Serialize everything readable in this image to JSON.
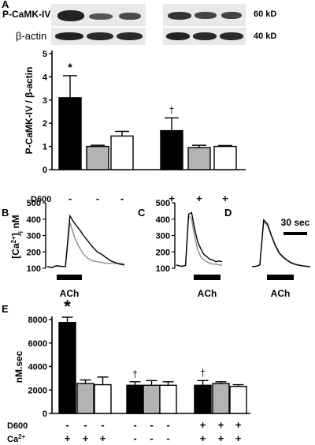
{
  "panels": {
    "a": "A",
    "b": "B",
    "c": "C",
    "d": "D",
    "e": "E"
  },
  "blot": {
    "row1_label": "P-CaMK-IV",
    "row1_kd": "60 kD",
    "row2_label": "β-actin",
    "row2_kd": "40 kD"
  },
  "colors": {
    "black": "#000000",
    "gray": "#b3b3b3",
    "white": "#ffffff",
    "trace_gray": "#8c8c8c"
  },
  "chart_data": [
    {
      "type": "bar",
      "panel": "A",
      "ylabel": "P-CaMK-IV / β-actin",
      "ylim": [
        0,
        5
      ],
      "yticks": [
        "0",
        "1",
        "2",
        "3",
        "4",
        "5"
      ],
      "group_rows": [
        {
          "label": "D600",
          "values": [
            "-",
            "-",
            "-",
            "+",
            "+",
            "+"
          ]
        }
      ],
      "bars": [
        {
          "value": 3.1,
          "err": 0.95,
          "color": "black",
          "mark": "*"
        },
        {
          "value": 1.0,
          "err": 0.05,
          "color": "gray",
          "mark": ""
        },
        {
          "value": 1.45,
          "err": 0.2,
          "color": "white",
          "mark": ""
        },
        {
          "value": 1.68,
          "err": 0.55,
          "color": "black",
          "mark": "†"
        },
        {
          "value": 0.95,
          "err": 0.1,
          "color": "gray",
          "mark": ""
        },
        {
          "value": 1.0,
          "err": 0.04,
          "color": "white",
          "mark": ""
        }
      ]
    },
    {
      "type": "line",
      "panel": "B",
      "ylabel": "[Ca2+]i nM",
      "ylim": [
        100,
        500
      ],
      "yticks": [
        "100",
        "200",
        "300",
        "400",
        "500"
      ],
      "stimulus": "ACh",
      "x": [
        0,
        4,
        8,
        12,
        16,
        20,
        24,
        28,
        32,
        36,
        40,
        44,
        48,
        52,
        56,
        60,
        64,
        68
      ],
      "series": [
        {
          "color": "black",
          "values": [
            110,
            105,
            115,
            112,
            110,
            420,
            375,
            340,
            300,
            265,
            230,
            200,
            185,
            165,
            145,
            135,
            125,
            120
          ]
        },
        {
          "color": "gray",
          "values": [
            110,
            105,
            115,
            112,
            110,
            380,
            290,
            230,
            185,
            160,
            145,
            140,
            135,
            130,
            130,
            130,
            130,
            130
          ]
        }
      ]
    },
    {
      "type": "line",
      "panel": "C",
      "ylim": [
        100,
        500
      ],
      "yticks": [
        "100",
        "200",
        "300",
        "400",
        "500"
      ],
      "stimulus": "ACh",
      "x": [
        0,
        4,
        8,
        12,
        16,
        20,
        24,
        28,
        32,
        36,
        40,
        44,
        48,
        52,
        56,
        60
      ],
      "series": [
        {
          "color": "black",
          "values": [
            120,
            115,
            112,
            118,
            430,
            440,
            340,
            260,
            220,
            185,
            170,
            155,
            150,
            140,
            145,
            140
          ]
        },
        {
          "color": "gray",
          "values": [
            120,
            115,
            112,
            118,
            420,
            400,
            290,
            215,
            170,
            150,
            140,
            130,
            125,
            125,
            120,
            120
          ]
        }
      ]
    },
    {
      "type": "line",
      "panel": "D",
      "scale_bar": "30 sec",
      "stimulus": "ACh",
      "x": [
        0,
        4,
        8,
        12,
        16,
        20,
        24,
        28,
        32,
        36,
        40,
        44,
        48,
        52,
        56,
        60
      ],
      "series": [
        {
          "color": "black",
          "values": [
            110,
            112,
            120,
            395,
            370,
            300,
            240,
            195,
            170,
            150,
            135,
            125,
            120,
            115,
            112,
            110
          ]
        },
        {
          "color": "gray",
          "values": [
            110,
            112,
            120,
            385,
            360,
            295,
            235,
            190,
            165,
            148,
            133,
            124,
            118,
            114,
            112,
            110
          ]
        }
      ]
    },
    {
      "type": "bar",
      "panel": "E",
      "ylabel": "nM.sec",
      "ylim": [
        0,
        8000
      ],
      "yticks": [
        "0",
        "2000",
        "4000",
        "6000",
        "8000"
      ],
      "group_rows": [
        {
          "label": "D600",
          "values": [
            "-",
            "-",
            "-",
            "-",
            "-",
            "-",
            "+",
            "+",
            "+"
          ]
        },
        {
          "label": "Ca2+",
          "values": [
            "+",
            "+",
            "+",
            "-",
            "-",
            "-",
            "+",
            "+",
            "+"
          ]
        }
      ],
      "bars": [
        {
          "value": 7750,
          "err": 450,
          "color": "black",
          "mark": "*"
        },
        {
          "value": 2550,
          "err": 300,
          "color": "gray",
          "mark": ""
        },
        {
          "value": 2450,
          "err": 650,
          "color": "white",
          "mark": ""
        },
        {
          "value": 2400,
          "err": 300,
          "color": "black",
          "mark": "†"
        },
        {
          "value": 2400,
          "err": 400,
          "color": "gray",
          "mark": ""
        },
        {
          "value": 2400,
          "err": 300,
          "color": "white",
          "mark": ""
        },
        {
          "value": 2400,
          "err": 400,
          "color": "black",
          "mark": "†"
        },
        {
          "value": 2550,
          "err": 150,
          "color": "gray",
          "mark": ""
        },
        {
          "value": 2300,
          "err": 150,
          "color": "white",
          "mark": ""
        }
      ]
    }
  ]
}
